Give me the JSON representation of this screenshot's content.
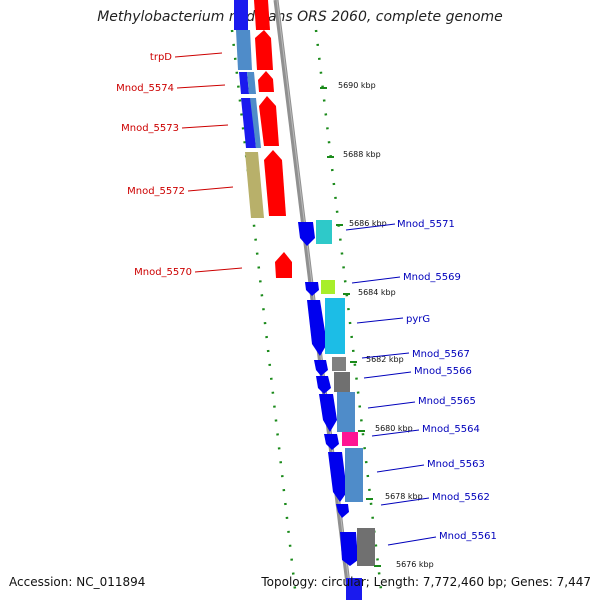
{
  "title": "Methylobacterium nodulans ORS 2060, complete genome",
  "footer": {
    "accession": "Accession: NC_011894",
    "topology": "Topology: circular; Length: 7,772,460 bp; Genes: 7,447"
  },
  "ticks": [
    "5690 kbp",
    "5688 kbp",
    "5686 kbp",
    "5684 kbp",
    "5682 kbp",
    "5680 kbp",
    "5678 kbp",
    "5676 kbp"
  ],
  "left_genes": [
    "trpD",
    "Mnod_5574",
    "Mnod_5573",
    "Mnod_5572",
    "Mnod_5570"
  ],
  "right_genes": [
    "Mnod_5571",
    "Mnod_5569",
    "pyrG",
    "Mnod_5567",
    "Mnod_5566",
    "Mnod_5565",
    "Mnod_5564",
    "Mnod_5563",
    "Mnod_5562",
    "Mnod_5561"
  ],
  "colors": {
    "forward_strand": "#ff0000",
    "reverse_strand": "#0000ee",
    "left_label": "#cc0000",
    "right_label": "#0000bb",
    "backbone": "#808080",
    "dots": "#228b22"
  }
}
